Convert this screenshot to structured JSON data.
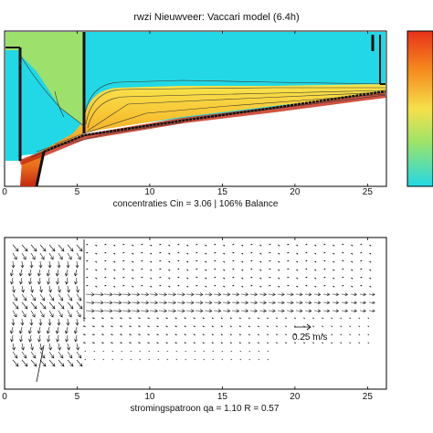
{
  "colors": {
    "water": "#22d8e6",
    "wall": "#222222",
    "plot_bg": "#ffffff",
    "sludge_low": "#9be36a",
    "sludge_mid": "#f6e24a",
    "sludge_high": "#f19a2a",
    "sludge_max": "#cf2a12",
    "colorbar_top": "#e8321a",
    "colorbar_bottom": "#22d8e6"
  },
  "chart_data": [
    {
      "type": "heatmap",
      "title": "rwzi Nieuwveer: Vaccari model (6.4h)",
      "xlabel": "concentraties   Cin = 3.06 | 106% Balance",
      "ylabel": "",
      "xlim": [
        0,
        26.3
      ],
      "xticks": [
        "0",
        "5",
        "10",
        "15",
        "20",
        "25"
      ],
      "grid": false,
      "colorbar": true,
      "regions": [
        {
          "name": "inlet",
          "x": [
            0,
            1.4
          ]
        },
        {
          "name": "baffle",
          "x": [
            5.6,
            5.6
          ]
        },
        {
          "name": "outlet weir",
          "x": [
            25.2,
            26.2
          ]
        }
      ],
      "sludge_blanket_depth_fraction": [
        {
          "x": 1.8,
          "top": 0.63,
          "bottom": 1.0
        },
        {
          "x": 5.2,
          "top": 0.55,
          "bottom": 0.78
        },
        {
          "x": 9.0,
          "top": 0.42,
          "bottom": 0.68
        },
        {
          "x": 15.0,
          "top": 0.46,
          "bottom": 0.58
        },
        {
          "x": 20.0,
          "top": 0.5,
          "bottom": 0.56
        },
        {
          "x": 25.5,
          "top": 0.52,
          "bottom": 0.54
        }
      ]
    },
    {
      "type": "scatter",
      "title": "",
      "xlabel": "stromingspatroon     qa = 1.10    R = 0.57",
      "ylabel": "",
      "xlim": [
        0,
        26.3
      ],
      "xticks": [
        "0",
        "5",
        "10",
        "15",
        "20",
        "25"
      ],
      "grid": false,
      "legend": {
        "label": "0.25 m/s",
        "position": "right"
      }
    }
  ]
}
